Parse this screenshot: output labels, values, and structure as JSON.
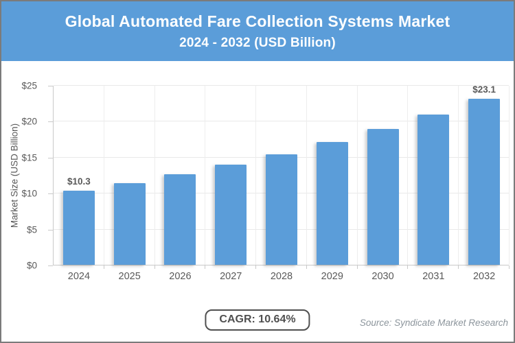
{
  "header": {
    "title_line1": "Global Automated Fare Collection Systems Market",
    "title_line2": "2024 - 2032 (USD Billion)",
    "bg_color": "#5B9DD9",
    "text_color": "#FFFFFF"
  },
  "chart_data": {
    "type": "bar",
    "title": "Global Automated Fare Collection Systems Market 2024 - 2032 (USD Billion)",
    "categories": [
      "2024",
      "2025",
      "2026",
      "2027",
      "2028",
      "2029",
      "2030",
      "2031",
      "2032"
    ],
    "values": [
      10.3,
      11.4,
      12.6,
      13.9,
      15.4,
      17.1,
      18.9,
      20.9,
      23.1
    ],
    "data_labels": {
      "2024": "$10.3",
      "2032": "$23.1"
    },
    "xlabel": "",
    "ylabel": "Market Size (USD Billion)",
    "ylim": [
      0,
      25
    ],
    "ytick_interval": 5,
    "ytick_labels": [
      "$0",
      "$5",
      "$10",
      "$15",
      "$20",
      "$25"
    ],
    "grid": true,
    "legend": "none",
    "bar_color": "#5B9DD9"
  },
  "footer": {
    "cagr_label": "CAGR: 10.64%",
    "source": "Source: Syndicate Market Research"
  },
  "colors": {
    "border": "#7B7B7B",
    "axis_text": "#595959",
    "gridline": "#E9E9E9",
    "axis_line": "#C9C9C9",
    "data_label": "#595959",
    "cagr_text": "#4F4F4F",
    "source_text": "#8C959C"
  }
}
